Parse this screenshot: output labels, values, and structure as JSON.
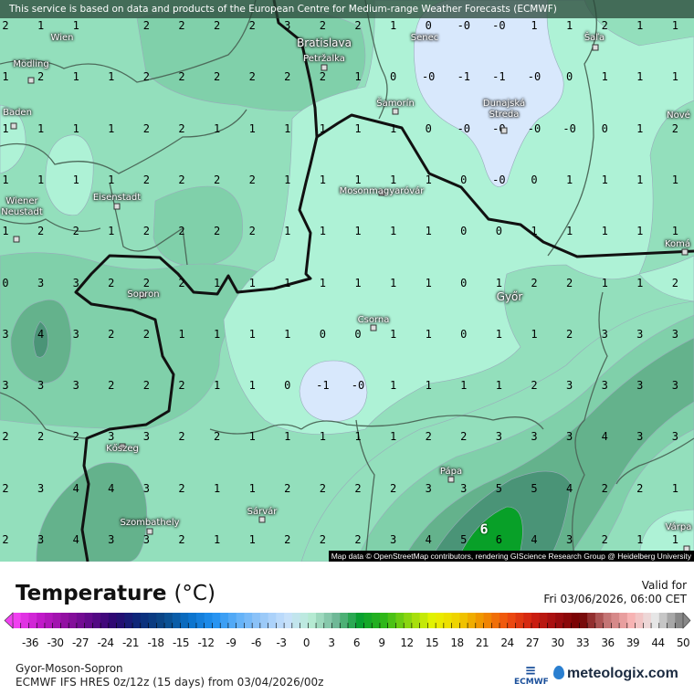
{
  "banner": "This service is based on data and products of the European Centre for Medium-range Weather Forecasts (ECMWF)",
  "attribution": "Map data © OpenStreetMap contributors, rendering GIScience Research Group @ Heidelberg University",
  "colors": {
    "below_zero": "#d8e8fc",
    "zero_to_one": "#aef2d6",
    "one_to_two": "#93dfbc",
    "two_to_three": "#80d0aa",
    "three_to_four": "#64b28c",
    "four_to_five": "#4a9477",
    "six": "#08a028",
    "national_border": "#111111",
    "admin_border": "#4d6b5b"
  },
  "grid_values": [
    [
      "2",
      "1",
      "1",
      "",
      "2",
      "2",
      "2",
      "2",
      "3",
      "2",
      "2",
      "1",
      "0",
      "-0",
      "-0",
      "1",
      "1",
      "2",
      "1",
      "1"
    ],
    [
      "1",
      "2",
      "1",
      "1",
      "2",
      "2",
      "2",
      "2",
      "2",
      "2",
      "1",
      "0",
      "-0",
      "-1",
      "-1",
      "-0",
      "0",
      "1",
      "1",
      "1"
    ],
    [
      "1",
      "1",
      "1",
      "1",
      "2",
      "2",
      "1",
      "1",
      "1",
      "1",
      "1",
      "1",
      "0",
      "-0",
      "-0",
      "-0",
      "-0",
      "0",
      "1",
      "2"
    ],
    [
      "1",
      "1",
      "1",
      "1",
      "2",
      "2",
      "2",
      "2",
      "1",
      "1",
      "1",
      "1",
      "1",
      "0",
      "-0",
      "0",
      "1",
      "1",
      "1",
      "1"
    ],
    [
      "1",
      "2",
      "2",
      "1",
      "2",
      "2",
      "2",
      "2",
      "1",
      "1",
      "1",
      "1",
      "1",
      "0",
      "0",
      "1",
      "1",
      "1",
      "1",
      "1"
    ],
    [
      "0",
      "3",
      "3",
      "2",
      "2",
      "2",
      "1",
      "1",
      "1",
      "1",
      "1",
      "1",
      "1",
      "0",
      "1",
      "2",
      "2",
      "1",
      "1",
      "2"
    ],
    [
      "3",
      "4",
      "3",
      "2",
      "2",
      "1",
      "1",
      "1",
      "1",
      "0",
      "0",
      "1",
      "1",
      "0",
      "1",
      "1",
      "2",
      "3",
      "3",
      "3"
    ],
    [
      "3",
      "3",
      "3",
      "2",
      "2",
      "2",
      "1",
      "1",
      "0",
      "-1",
      "-0",
      "1",
      "1",
      "1",
      "1",
      "2",
      "3",
      "3",
      "3",
      "3"
    ],
    [
      "2",
      "2",
      "2",
      "3",
      "3",
      "2",
      "2",
      "1",
      "1",
      "1",
      "1",
      "1",
      "2",
      "2",
      "3",
      "3",
      "3",
      "4",
      "3",
      "3"
    ],
    [
      "2",
      "3",
      "4",
      "4",
      "3",
      "2",
      "1",
      "1",
      "2",
      "2",
      "2",
      "2",
      "3",
      "3",
      "5",
      "5",
      "4",
      "2",
      "2",
      "1"
    ],
    [
      "2",
      "3",
      "4",
      "3",
      "3",
      "2",
      "1",
      "1",
      "2",
      "2",
      "2",
      "3",
      "4",
      "5",
      "6",
      "4",
      "3",
      "2",
      "1",
      "1"
    ]
  ],
  "max_marker": "6",
  "cities": [
    {
      "name": "Wien",
      "big": false
    },
    {
      "name": "Senec",
      "big": false
    },
    {
      "name": "Bratislava",
      "big": true
    },
    {
      "name": "Petržalka",
      "big": false
    },
    {
      "name": "Mödling",
      "big": false
    },
    {
      "name": "Šaľa",
      "big": false
    },
    {
      "name": "Baden",
      "big": false
    },
    {
      "name": "Šamorín",
      "big": false
    },
    {
      "name": "Dunajská\nStreda",
      "big": false
    },
    {
      "name": "Nové",
      "big": false
    },
    {
      "name": "Eisenstadt",
      "big": false
    },
    {
      "name": "Wiener\nNeustadt",
      "big": false
    },
    {
      "name": "Mosonmagyaróvár",
      "big": false
    },
    {
      "name": "Komá",
      "big": false
    },
    {
      "name": "Sopron",
      "big": false
    },
    {
      "name": "Győr",
      "big": true
    },
    {
      "name": "Csorna",
      "big": false
    },
    {
      "name": "Kőszeg",
      "big": false
    },
    {
      "name": "Pápa",
      "big": false
    },
    {
      "name": "Sárvár",
      "big": false
    },
    {
      "name": "Szombathely",
      "big": false
    },
    {
      "name": "Várpa",
      "big": false
    }
  ],
  "legend": {
    "title": "Temperature",
    "unit": "(°C)",
    "valid_label": "Valid for",
    "valid_time": "Fri 03/06/2026, 06:00 CET",
    "ticks": [
      "-36",
      "-30",
      "-27",
      "-24",
      "-21",
      "-18",
      "-15",
      "-12",
      "-9",
      "-6",
      "-3",
      "0",
      "3",
      "6",
      "9",
      "12",
      "15",
      "18",
      "21",
      "24",
      "27",
      "30",
      "33",
      "36",
      "39",
      "44",
      "50"
    ],
    "color_stops": [
      "#f040f0",
      "#c018c8",
      "#9010a0",
      "#60088a",
      "#2a0870",
      "#0a2a7a",
      "#0a4a88",
      "#0a70c8",
      "#2090f0",
      "#60b0f8",
      "#98c8f8",
      "#c8e0fc",
      "#b8ecd4",
      "#70b898",
      "#08a030",
      "#30b818",
      "#90d810",
      "#e8f400",
      "#f0d000",
      "#f09000",
      "#f05010",
      "#d02010",
      "#a00c10",
      "#700000",
      "#c07070",
      "#f8b0b0",
      "#e8e8e8",
      "#888888"
    ],
    "region": "Gyor-Moson-Sopron",
    "model": "ECMWF IFS HRES 0z/12z (15 days) from  03/04/2026/00z",
    "ecmwf_logo": "ECMWF",
    "brand": "meteologix.com"
  }
}
